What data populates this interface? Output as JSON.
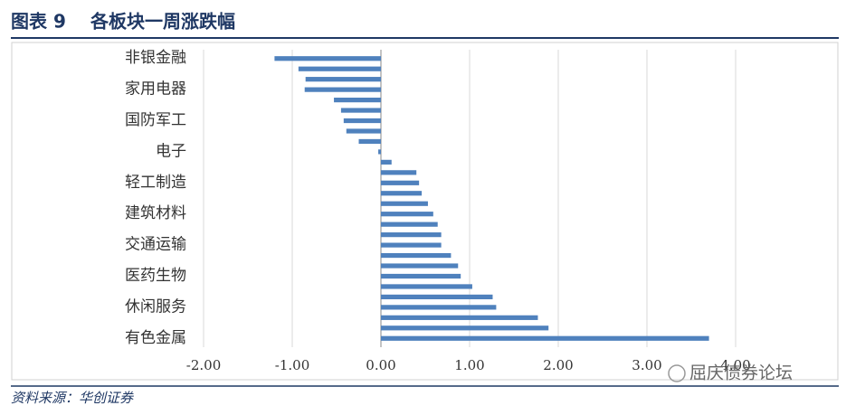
{
  "header": {
    "label": "图表 9",
    "title": "各板块一周涨跌幅"
  },
  "source": "资料来源：华创证券",
  "watermark": "屈庆债券论坛",
  "chart_data": {
    "type": "bar",
    "orientation": "horizontal",
    "color": "#4f81bd",
    "grid": true,
    "categories": [
      "非银金融",
      null,
      null,
      "家用电器",
      null,
      null,
      "国防军工",
      null,
      null,
      "电子",
      null,
      null,
      "轻工制造",
      null,
      null,
      "建筑材料",
      null,
      null,
      "交通运输",
      null,
      null,
      "医药生物",
      null,
      null,
      "休闲服务",
      null,
      null,
      "有色金属"
    ],
    "values": [
      -1.2,
      -0.93,
      -0.85,
      -0.86,
      -0.53,
      -0.45,
      -0.42,
      -0.39,
      -0.25,
      -0.03,
      0.12,
      0.4,
      0.43,
      0.46,
      0.53,
      0.59,
      0.64,
      0.68,
      0.68,
      0.79,
      0.87,
      0.9,
      1.03,
      1.26,
      1.3,
      1.77,
      1.89,
      3.7
    ],
    "xlim": [
      -2,
      4
    ],
    "xticks": [
      {
        "value": -2,
        "label": "-2.00"
      },
      {
        "value": -1,
        "label": "-1.00"
      },
      {
        "value": 0,
        "label": "0.00"
      },
      {
        "value": 1,
        "label": "1.00"
      },
      {
        "value": 2,
        "label": "2.00"
      },
      {
        "value": 3,
        "label": "3.00"
      },
      {
        "value": 4,
        "label": "4.00"
      }
    ]
  }
}
